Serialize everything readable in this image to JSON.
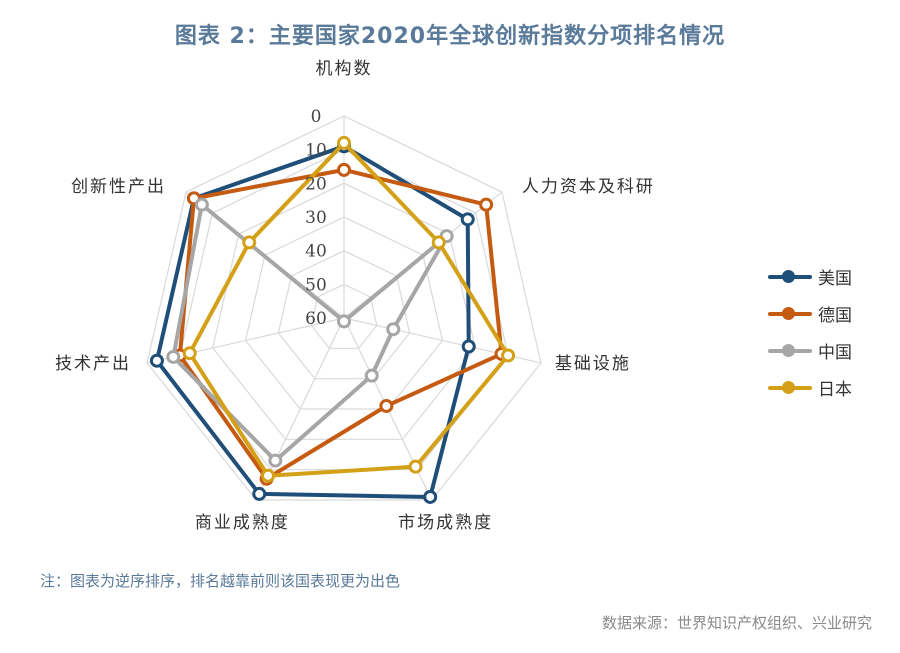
{
  "title": "图表 2：主要国家2020年全球创新指数分项排名情况",
  "note": "注：图表为逆序排序，排名越靠前则该国表现更为出色",
  "source": "数据来源：世界知识产权组织、兴业研究",
  "chart_data": {
    "type": "radar",
    "reversed": true,
    "rlim": [
      0,
      60
    ],
    "ticks": [
      "0",
      "10",
      "20",
      "30",
      "40",
      "50",
      "60"
    ],
    "tick_values": [
      0,
      10,
      20,
      30,
      40,
      50,
      60
    ],
    "grid": true,
    "legend_position": "right",
    "axes": [
      "机构数",
      "人力资本及科研",
      "基础设施",
      "市场成熟度",
      "商业成熟度",
      "技术产出",
      "创新性产出"
    ],
    "series": [
      {
        "name": "美国",
        "color": "#1f4e79",
        "values": [
          9,
          13,
          22,
          1,
          2,
          3,
          3
        ]
      },
      {
        "name": "德国",
        "color": "#c55a11",
        "values": [
          16,
          6,
          12,
          31,
          7,
          10,
          3
        ]
      },
      {
        "name": "中国",
        "color": "#a6a6a6",
        "values": [
          61,
          21,
          45,
          41,
          13,
          8,
          6
        ]
      },
      {
        "name": "日本",
        "color": "#d4a017",
        "values": [
          8,
          24,
          10,
          11,
          8,
          13,
          24
        ]
      }
    ]
  }
}
